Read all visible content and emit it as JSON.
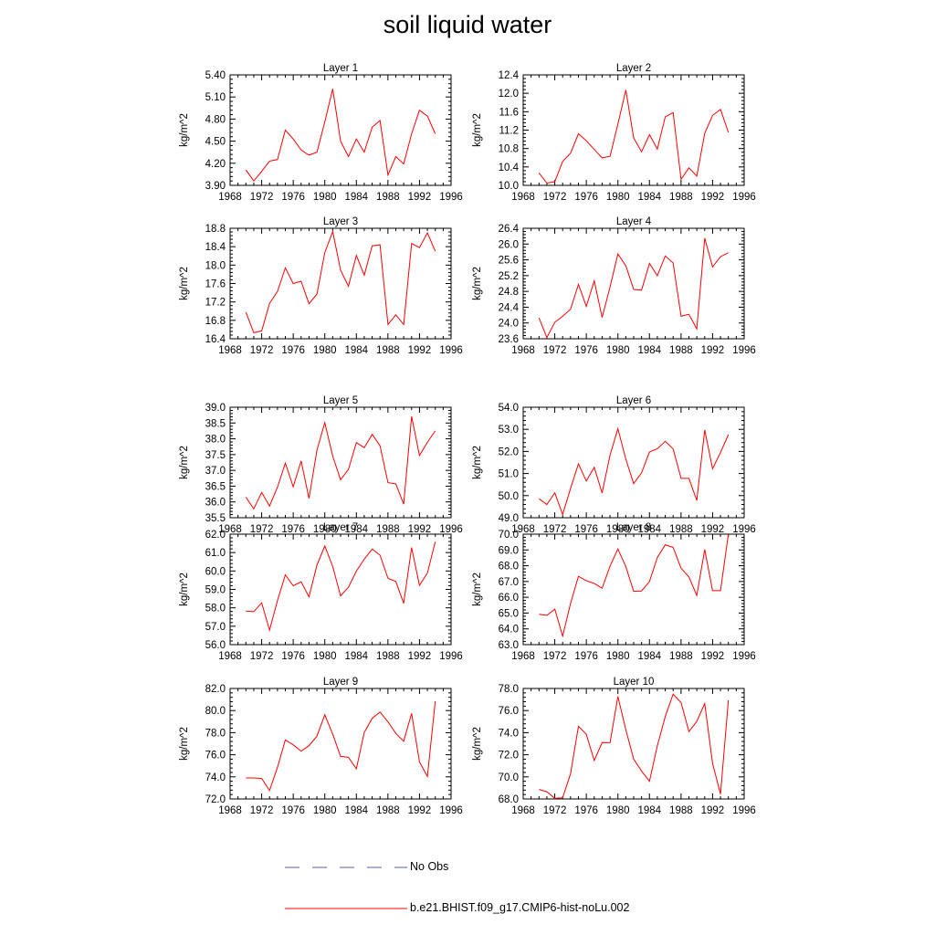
{
  "title": "soil liquid water",
  "colors": {
    "model": "#ff0000",
    "obs": "#5a5ab4",
    "axis": "#000000"
  },
  "legend": {
    "obs_label": "No Obs",
    "model_label": "b.e21.BHIST.f09_g17.CMIP6-hist-noLu.002"
  },
  "chart_data": [
    {
      "type": "line",
      "title": "Layer 1",
      "ylabel": "kg/m^2",
      "xlim": [
        1968,
        1996
      ],
      "xticks": [
        1968,
        1972,
        1976,
        1980,
        1984,
        1988,
        1992,
        1996
      ],
      "ylim": [
        3.9,
        5.4
      ],
      "yticks": [
        "3.90",
        "4.20",
        "4.50",
        "4.80",
        "5.10",
        "5.40"
      ],
      "series": [
        {
          "x": [
            1970,
            1971,
            1972,
            1973,
            1974,
            1975,
            1976,
            1977,
            1978,
            1979,
            1980,
            1981,
            1982,
            1983,
            1984,
            1985,
            1986,
            1987,
            1988,
            1989,
            1990,
            1991,
            1992,
            1993,
            1994
          ],
          "values": [
            4.11,
            3.96,
            4.09,
            4.23,
            4.25,
            4.65,
            4.53,
            4.38,
            4.31,
            4.35,
            4.76,
            5.21,
            4.5,
            4.29,
            4.53,
            4.35,
            4.69,
            4.78,
            4.04,
            4.29,
            4.19,
            4.6,
            4.92,
            4.84,
            4.6
          ]
        }
      ]
    },
    {
      "type": "line",
      "title": "Layer 2",
      "ylabel": "kg/m^2",
      "xlim": [
        1968,
        1996
      ],
      "xticks": [
        1968,
        1972,
        1976,
        1980,
        1984,
        1988,
        1992,
        1996
      ],
      "ylim": [
        10.0,
        12.4
      ],
      "yticks": [
        "10.0",
        "10.4",
        "10.8",
        "11.2",
        "11.6",
        "12.0",
        "12.4"
      ],
      "series": [
        {
          "x": [
            1970,
            1971,
            1972,
            1973,
            1974,
            1975,
            1976,
            1977,
            1978,
            1979,
            1980,
            1981,
            1982,
            1983,
            1984,
            1985,
            1986,
            1987,
            1988,
            1989,
            1990,
            1991,
            1992,
            1993,
            1994
          ],
          "values": [
            10.27,
            10.05,
            10.08,
            10.52,
            10.7,
            11.12,
            10.97,
            10.78,
            10.6,
            10.63,
            11.33,
            12.07,
            11.03,
            10.73,
            11.1,
            10.79,
            11.49,
            11.58,
            10.13,
            10.38,
            10.2,
            11.13,
            11.52,
            11.65,
            11.15
          ]
        }
      ]
    },
    {
      "type": "line",
      "title": "Layer 3",
      "ylabel": "kg/m^2",
      "xlim": [
        1968,
        1996
      ],
      "xticks": [
        1968,
        1972,
        1976,
        1980,
        1984,
        1988,
        1992,
        1996
      ],
      "ylim": [
        16.4,
        18.8
      ],
      "yticks": [
        "16.4",
        "16.8",
        "17.2",
        "17.6",
        "18.0",
        "18.4",
        "18.8"
      ],
      "series": [
        {
          "x": [
            1970,
            1971,
            1972,
            1973,
            1974,
            1975,
            1976,
            1977,
            1978,
            1979,
            1980,
            1981,
            1982,
            1983,
            1984,
            1985,
            1986,
            1987,
            1988,
            1989,
            1990,
            1991,
            1992,
            1993,
            1994
          ],
          "values": [
            16.98,
            16.53,
            16.57,
            17.17,
            17.43,
            17.94,
            17.6,
            17.65,
            17.16,
            17.37,
            18.27,
            18.73,
            17.89,
            17.54,
            18.21,
            17.78,
            18.42,
            18.44,
            16.71,
            16.92,
            16.71,
            18.47,
            18.38,
            18.7,
            18.3
          ]
        }
      ]
    },
    {
      "type": "line",
      "title": "Layer 4",
      "ylabel": "kg/m^2",
      "xlim": [
        1968,
        1996
      ],
      "xticks": [
        1968,
        1972,
        1976,
        1980,
        1984,
        1988,
        1992,
        1996
      ],
      "ylim": [
        23.6,
        26.4
      ],
      "yticks": [
        "23.6",
        "24.0",
        "24.4",
        "24.8",
        "25.2",
        "25.6",
        "26.0",
        "26.4"
      ],
      "series": [
        {
          "x": [
            1970,
            1971,
            1972,
            1973,
            1974,
            1975,
            1976,
            1977,
            1978,
            1979,
            1980,
            1981,
            1982,
            1983,
            1984,
            1985,
            1986,
            1987,
            1988,
            1989,
            1990,
            1991,
            1992,
            1993,
            1994
          ],
          "values": [
            24.13,
            23.63,
            24.02,
            24.17,
            24.35,
            24.98,
            24.42,
            25.07,
            24.14,
            24.91,
            25.75,
            25.45,
            24.85,
            24.83,
            25.51,
            25.2,
            25.7,
            25.52,
            24.17,
            24.22,
            23.85,
            26.15,
            25.42,
            25.68,
            25.78
          ]
        }
      ]
    },
    {
      "type": "line",
      "title": "Layer 5",
      "ylabel": "kg/m^2",
      "xlim": [
        1968,
        1996
      ],
      "xticks": [
        1968,
        1972,
        1976,
        1980,
        1984,
        1988,
        1992,
        1996
      ],
      "ylim": [
        35.5,
        39.0
      ],
      "yticks": [
        "35.5",
        "36.0",
        "36.5",
        "37.0",
        "37.5",
        "38.0",
        "38.5",
        "39.0"
      ],
      "series": [
        {
          "x": [
            1970,
            1971,
            1972,
            1973,
            1974,
            1975,
            1976,
            1977,
            1978,
            1979,
            1980,
            1981,
            1982,
            1983,
            1984,
            1985,
            1986,
            1987,
            1988,
            1989,
            1990,
            1991,
            1992,
            1993,
            1994
          ],
          "values": [
            36.15,
            35.78,
            36.3,
            35.87,
            36.47,
            37.23,
            36.48,
            37.3,
            36.11,
            37.64,
            38.51,
            37.45,
            36.7,
            37.03,
            37.88,
            37.72,
            38.14,
            37.78,
            36.61,
            36.57,
            35.93,
            38.71,
            37.47,
            37.89,
            38.25
          ]
        }
      ]
    },
    {
      "type": "line",
      "title": "Layer 6",
      "ylabel": "kg/m^2",
      "xlim": [
        1968,
        1996
      ],
      "xticks": [
        1968,
        1972,
        1976,
        1980,
        1984,
        1988,
        1992,
        1996
      ],
      "ylim": [
        49.0,
        54.0
      ],
      "yticks": [
        "49.0",
        "50.0",
        "51.0",
        "52.0",
        "53.0",
        "54.0"
      ],
      "series": [
        {
          "x": [
            1970,
            1971,
            1972,
            1973,
            1974,
            1975,
            1976,
            1977,
            1978,
            1979,
            1980,
            1981,
            1982,
            1983,
            1984,
            1985,
            1986,
            1987,
            1988,
            1989,
            1990,
            1991,
            1992,
            1993,
            1994
          ],
          "values": [
            49.86,
            49.6,
            50.13,
            49.15,
            50.33,
            51.44,
            50.66,
            51.28,
            50.12,
            51.83,
            53.03,
            51.65,
            50.54,
            51.03,
            51.98,
            52.12,
            52.46,
            52.11,
            50.78,
            50.78,
            49.78,
            52.97,
            51.22,
            51.95,
            52.76
          ]
        }
      ]
    },
    {
      "type": "line",
      "title": "Layer 7",
      "ylabel": "kg/m^2",
      "xlim": [
        1968,
        1996
      ],
      "xticks": [
        1968,
        1972,
        1976,
        1980,
        1984,
        1988,
        1992,
        1996
      ],
      "ylim": [
        56.0,
        62.0
      ],
      "yticks": [
        "56.0",
        "57.0",
        "58.0",
        "59.0",
        "60.0",
        "61.0",
        "62.0"
      ],
      "series": [
        {
          "x": [
            1970,
            1971,
            1972,
            1973,
            1974,
            1975,
            1976,
            1977,
            1978,
            1979,
            1980,
            1981,
            1982,
            1983,
            1984,
            1985,
            1986,
            1987,
            1988,
            1989,
            1990,
            1991,
            1992,
            1993,
            1994
          ],
          "values": [
            57.82,
            57.79,
            58.27,
            56.79,
            58.4,
            59.79,
            59.2,
            59.41,
            58.6,
            60.32,
            61.36,
            60.24,
            58.65,
            59.12,
            59.99,
            60.64,
            61.19,
            60.86,
            59.6,
            59.43,
            58.24,
            61.27,
            59.22,
            59.89,
            61.59
          ]
        }
      ]
    },
    {
      "type": "line",
      "title": "Layer 8",
      "ylabel": "kg/m^2",
      "xlim": [
        1968,
        1996
      ],
      "xticks": [
        1968,
        1972,
        1976,
        1980,
        1984,
        1988,
        1992,
        1996
      ],
      "ylim": [
        63.0,
        70.0
      ],
      "yticks": [
        "63.0",
        "64.0",
        "65.0",
        "66.0",
        "67.0",
        "68.0",
        "69.0",
        "70.0"
      ],
      "series": [
        {
          "x": [
            1970,
            1971,
            1972,
            1973,
            1974,
            1975,
            1976,
            1977,
            1978,
            1979,
            1980,
            1981,
            1982,
            1983,
            1984,
            1985,
            1986,
            1987,
            1988,
            1989,
            1990,
            1991,
            1992,
            1993,
            1994
          ],
          "values": [
            64.92,
            64.85,
            65.25,
            63.54,
            65.62,
            67.33,
            67.05,
            66.88,
            66.57,
            67.97,
            69.06,
            67.94,
            66.38,
            66.4,
            67.0,
            68.52,
            69.33,
            69.16,
            67.84,
            67.29,
            66.12,
            69.03,
            66.42,
            66.42,
            70.0
          ]
        }
      ]
    },
    {
      "type": "line",
      "title": "Layer 9",
      "ylabel": "kg/m^2",
      "xlim": [
        1968,
        1996
      ],
      "xticks": [
        1968,
        1972,
        1976,
        1980,
        1984,
        1988,
        1992,
        1996
      ],
      "ylim": [
        72.0,
        82.0
      ],
      "yticks": [
        "72.0",
        "74.0",
        "76.0",
        "78.0",
        "80.0",
        "82.0"
      ],
      "series": [
        {
          "x": [
            1970,
            1971,
            1972,
            1973,
            1974,
            1975,
            1976,
            1977,
            1978,
            1979,
            1980,
            1981,
            1982,
            1983,
            1984,
            1985,
            1986,
            1987,
            1988,
            1989,
            1990,
            1991,
            1992,
            1993,
            1994
          ],
          "values": [
            73.9,
            73.9,
            73.85,
            72.76,
            74.87,
            77.34,
            76.9,
            76.33,
            76.82,
            77.69,
            79.62,
            77.86,
            75.85,
            75.77,
            74.73,
            78.02,
            79.3,
            79.87,
            78.98,
            77.93,
            77.22,
            79.74,
            75.35,
            74.04,
            80.84
          ]
        }
      ]
    },
    {
      "type": "line",
      "title": "Layer 10",
      "ylabel": "kg/m^2",
      "xlim": [
        1968,
        1996
      ],
      "xticks": [
        1968,
        1972,
        1976,
        1980,
        1984,
        1988,
        1992,
        1996
      ],
      "ylim": [
        68.0,
        78.0
      ],
      "yticks": [
        "68.0",
        "70.0",
        "72.0",
        "74.0",
        "76.0",
        "78.0"
      ],
      "series": [
        {
          "x": [
            1970,
            1971,
            1972,
            1973,
            1974,
            1975,
            1976,
            1977,
            1978,
            1979,
            1980,
            1981,
            1982,
            1983,
            1984,
            1985,
            1986,
            1987,
            1988,
            1989,
            1990,
            1991,
            1992,
            1993,
            1994
          ],
          "values": [
            68.86,
            68.65,
            68.06,
            68.11,
            70.3,
            74.58,
            73.86,
            71.48,
            73.1,
            73.09,
            77.27,
            74.27,
            71.6,
            70.53,
            69.6,
            72.81,
            75.46,
            77.49,
            76.72,
            74.09,
            75.02,
            76.63,
            71.22,
            68.44,
            76.93
          ]
        }
      ]
    }
  ]
}
